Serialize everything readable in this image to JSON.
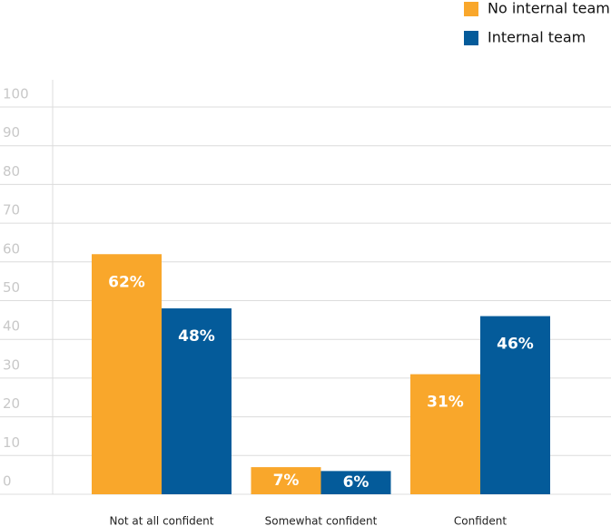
{
  "chart_data": {
    "type": "bar",
    "categories": [
      "Not at all confident",
      "Somewhat confident",
      "Confident"
    ],
    "series": [
      {
        "name": "No internal team",
        "color": "#f9a72b",
        "values": [
          62,
          7,
          31
        ],
        "value_labels": [
          "62%",
          "7%",
          "31%"
        ]
      },
      {
        "name": "Internal team",
        "color": "#045b9a",
        "values": [
          48,
          6,
          46
        ],
        "value_labels": [
          "48%",
          "6%",
          "46%"
        ]
      }
    ],
    "ylim": [
      0,
      100
    ],
    "yticks": [
      0,
      10,
      20,
      30,
      40,
      50,
      60,
      70,
      80,
      90,
      100
    ],
    "grid": true,
    "legend": "top-right"
  }
}
